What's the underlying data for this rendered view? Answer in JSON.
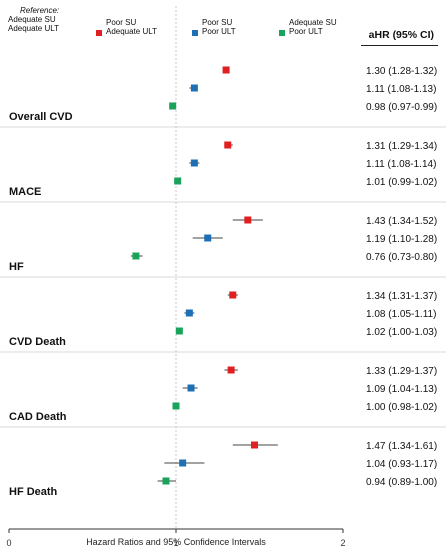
{
  "legend": {
    "reference_title": "Reference:",
    "reference_lines": [
      "Adequate SU",
      "Adequate ULT"
    ],
    "items": [
      {
        "lines": [
          "Poor SU",
          "Adequate ULT"
        ],
        "color": "#e02020"
      },
      {
        "lines": [
          "Poor SU",
          "Poor ULT"
        ],
        "color": "#1f6fb5"
      },
      {
        "lines": [
          "Adequate SU",
          "Poor ULT"
        ],
        "color": "#1aa35a"
      }
    ]
  },
  "ci_header": "aHR (95% CI)",
  "chart_data": {
    "type": "forest",
    "xlabel": "Hazard Ratios and 95% Confidence Intervals",
    "xlim": [
      0,
      2
    ],
    "xticks": [
      "0",
      "1",
      "2"
    ],
    "reference_line": 1,
    "series": [
      {
        "name": "Poor SU Adequate ULT",
        "color": "#e02020"
      },
      {
        "name": "Poor SU Poor ULT",
        "color": "#1f6fb5"
      },
      {
        "name": "Adequate SU Poor ULT",
        "color": "#1aa35a"
      }
    ],
    "groups": [
      {
        "label": "Overall CVD",
        "rows": [
          {
            "series": 0,
            "hr": 1.3,
            "lo": 1.28,
            "hi": 1.32,
            "text": "1.30 (1.28-1.32)"
          },
          {
            "series": 1,
            "hr": 1.11,
            "lo": 1.08,
            "hi": 1.13,
            "text": "1.11 (1.08-1.13)"
          },
          {
            "series": 2,
            "hr": 0.98,
            "lo": 0.97,
            "hi": 0.99,
            "text": "0.98 (0.97-0.99)"
          }
        ]
      },
      {
        "label": "MACE",
        "rows": [
          {
            "series": 0,
            "hr": 1.31,
            "lo": 1.29,
            "hi": 1.34,
            "text": "1.31 (1.29-1.34)"
          },
          {
            "series": 1,
            "hr": 1.11,
            "lo": 1.08,
            "hi": 1.14,
            "text": "1.11 (1.08-1.14)"
          },
          {
            "series": 2,
            "hr": 1.01,
            "lo": 0.99,
            "hi": 1.02,
            "text": "1.01 (0.99-1.02)"
          }
        ]
      },
      {
        "label": "HF",
        "rows": [
          {
            "series": 0,
            "hr": 1.43,
            "lo": 1.34,
            "hi": 1.52,
            "text": "1.43 (1.34-1.52)"
          },
          {
            "series": 1,
            "hr": 1.19,
            "lo": 1.1,
            "hi": 1.28,
            "text": "1.19 (1.10-1.28)"
          },
          {
            "series": 2,
            "hr": 0.76,
            "lo": 0.73,
            "hi": 0.8,
            "text": "0.76 (0.73-0.80)"
          }
        ]
      },
      {
        "label": "CVD Death",
        "rows": [
          {
            "series": 0,
            "hr": 1.34,
            "lo": 1.31,
            "hi": 1.37,
            "text": "1.34 (1.31-1.37)"
          },
          {
            "series": 1,
            "hr": 1.08,
            "lo": 1.05,
            "hi": 1.11,
            "text": "1.08 (1.05-1.11)"
          },
          {
            "series": 2,
            "hr": 1.02,
            "lo": 1.0,
            "hi": 1.03,
            "text": "1.02 (1.00-1.03)"
          }
        ]
      },
      {
        "label": "CAD Death",
        "rows": [
          {
            "series": 0,
            "hr": 1.33,
            "lo": 1.29,
            "hi": 1.37,
            "text": "1.33 (1.29-1.37)"
          },
          {
            "series": 1,
            "hr": 1.09,
            "lo": 1.04,
            "hi": 1.13,
            "text": "1.09 (1.04-1.13)"
          },
          {
            "series": 2,
            "hr": 1.0,
            "lo": 0.98,
            "hi": 1.02,
            "text": "1.00 (0.98-1.02)"
          }
        ]
      },
      {
        "label": "HF Death",
        "rows": [
          {
            "series": 0,
            "hr": 1.47,
            "lo": 1.34,
            "hi": 1.61,
            "text": "1.47 (1.34-1.61)"
          },
          {
            "series": 1,
            "hr": 1.04,
            "lo": 0.93,
            "hi": 1.17,
            "text": "1.04 (0.93-1.17)"
          },
          {
            "series": 2,
            "hr": 0.94,
            "lo": 0.89,
            "hi": 1.0,
            "text": "0.94 (0.89-1.00)"
          }
        ]
      }
    ]
  }
}
